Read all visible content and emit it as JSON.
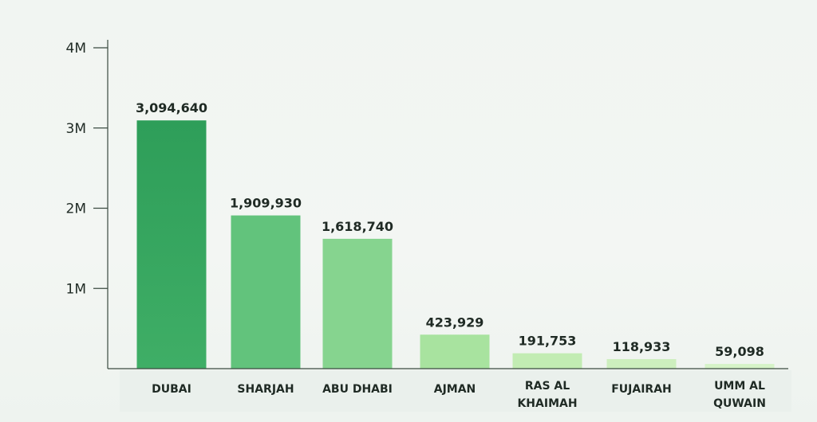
{
  "chart_data": {
    "type": "bar",
    "categories": [
      "DUBAI",
      "SHARJAH",
      "ABU DHABI",
      "AJMAN",
      "RAS AL KHAIMAH",
      "FUJAIRAH",
      "UMM AL QUWAIN"
    ],
    "category_lines": [
      [
        "DUBAI"
      ],
      [
        "SHARJAH"
      ],
      [
        "ABU DHABI"
      ],
      [
        "AJMAN"
      ],
      [
        "RAS AL",
        "KHAIMAH"
      ],
      [
        "FUJAIRAH"
      ],
      [
        "UMM AL",
        "QUWAIN"
      ]
    ],
    "values": [
      3094640,
      1909930,
      1618740,
      423929,
      191753,
      118933,
      59098
    ],
    "value_labels": [
      "3,094,640",
      "1,909,930",
      "1,618,740",
      "423,929",
      "191,753",
      "118,933",
      "59,098"
    ],
    "bar_colors": [
      "#34a65f",
      "#62c37c",
      "#86d48f",
      "#a8e39f",
      "#c2ecb3",
      "#cdefbe",
      "#d6f3c8"
    ],
    "yticks": [
      1000000,
      2000000,
      3000000,
      4000000
    ],
    "ytick_labels": [
      "1M",
      "2M",
      "3M",
      "4M"
    ],
    "ylim": [
      0,
      4000000
    ],
    "title": "",
    "xlabel": "",
    "ylabel": "",
    "grid": false,
    "axis_color": "#3a4a40"
  }
}
